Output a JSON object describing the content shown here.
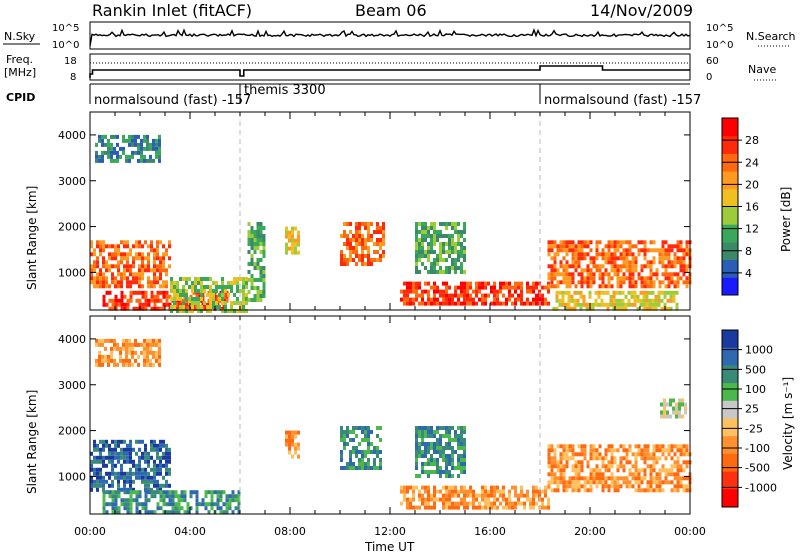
{
  "header": {
    "title": "Rankin Inlet (fitACF)",
    "beam": "Beam 06",
    "date": "14/Nov/2009"
  },
  "strip_labels": {
    "nsky": "N.Sky",
    "nsearch": "N.Search",
    "freq_line1": "Freq.",
    "freq_line2": "[MHz]",
    "nave": "Nave",
    "cpid": "CPID"
  },
  "noise_axis": {
    "left_top": "10^5",
    "left_bottom": "10^0",
    "right_top": "10^5",
    "right_bottom": "10^0"
  },
  "freq_axis": {
    "left_top": "18",
    "left_bottom": "8",
    "right_top": "60",
    "right_bottom": "0"
  },
  "cpid_segments": [
    {
      "label": "normalsound (fast) -157",
      "start_hour": 0
    },
    {
      "label": "themis 3300",
      "start_hour": 6
    },
    {
      "label": "normalsound (fast) -157",
      "start_hour": 18
    }
  ],
  "colors": {
    "power_scale": [
      "#1a1aff",
      "#2a5cb8",
      "#3a8a6a",
      "#3aa85a",
      "#9ccc3a",
      "#f0c020",
      "#ff9a20",
      "#ff6a10",
      "#ff2a0a",
      "#ff0000"
    ],
    "velocity_scale": [
      "#1a3aa0",
      "#2f6ab0",
      "#3a8a7a",
      "#4ab84a",
      "#c8c8c8",
      "#ffc060",
      "#ff9030",
      "#ff6a10",
      "#ff3010",
      "#ff0000"
    ],
    "noise_line": "#000000",
    "divider": "#999999"
  },
  "chart_data": [
    {
      "type": "heatmap",
      "name": "power",
      "ylabel": "Slant Range [km]",
      "y_ticks": [
        "1000",
        "2000",
        "3000",
        "4000"
      ],
      "ylim": [
        180,
        4500
      ],
      "colorbar_label": "Power [dB]",
      "colorbar_ticks": [
        "4",
        "8",
        "12",
        "16",
        "20",
        "24",
        "28"
      ],
      "colorbar_range": [
        0,
        32
      ],
      "regions": [
        {
          "x0": 0,
          "x1": 3.2,
          "y0": 700,
          "y1": 1700,
          "value": 26
        },
        {
          "x0": 0.5,
          "x1": 5.5,
          "y0": 200,
          "y1": 600,
          "value": 28
        },
        {
          "x0": 3.2,
          "x1": 6.2,
          "y0": 200,
          "y1": 900,
          "value": 14
        },
        {
          "x0": 6.3,
          "x1": 7.0,
          "y0": 400,
          "y1": 2100,
          "value": 10
        },
        {
          "x0": 7.8,
          "x1": 8.3,
          "y0": 1400,
          "y1": 2000,
          "value": 18
        },
        {
          "x0": 10.0,
          "x1": 11.8,
          "y0": 1200,
          "y1": 2100,
          "value": 26
        },
        {
          "x0": 12.4,
          "x1": 18.4,
          "y0": 300,
          "y1": 800,
          "value": 27
        },
        {
          "x0": 18.3,
          "x1": 24,
          "y0": 700,
          "y1": 1700,
          "value": 24
        },
        {
          "x0": 18.5,
          "x1": 23.5,
          "y0": 200,
          "y1": 600,
          "value": 18
        },
        {
          "x0": 13.0,
          "x1": 15.0,
          "y0": 1000,
          "y1": 2100,
          "value": 12
        },
        {
          "x0": 0.2,
          "x1": 2.8,
          "y0": 3400,
          "y1": 4000,
          "value": 8
        }
      ]
    },
    {
      "type": "heatmap",
      "name": "velocity",
      "ylabel": "Slant Range [km]",
      "y_ticks": [
        "1000",
        "2000",
        "3000",
        "4000"
      ],
      "ylim": [
        180,
        4500
      ],
      "xlabel": "Time UT",
      "x_ticks": [
        "00:00",
        "04:00",
        "08:00",
        "12:00",
        "16:00",
        "20:00",
        "00:00"
      ],
      "xlim": [
        0,
        24
      ],
      "colorbar_label": "Velocity [m s⁻¹]",
      "colorbar_ticks": [
        "1000",
        "500",
        "100",
        "25",
        "-25",
        "-100",
        "-500",
        "-1000"
      ],
      "regions": [
        {
          "x0": 0,
          "x1": 3.2,
          "y0": 700,
          "y1": 1800,
          "value": 400
        },
        {
          "x0": 0.5,
          "x1": 6.0,
          "y0": 200,
          "y1": 700,
          "value": 100
        },
        {
          "x0": 7.8,
          "x1": 8.3,
          "y0": 1400,
          "y1": 2000,
          "value": -300
        },
        {
          "x0": 10.0,
          "x1": 11.6,
          "y0": 1200,
          "y1": 2100,
          "value": 150
        },
        {
          "x0": 12.4,
          "x1": 18.4,
          "y0": 300,
          "y1": 800,
          "value": -200
        },
        {
          "x0": 18.3,
          "x1": 24,
          "y0": 700,
          "y1": 1700,
          "value": -300
        },
        {
          "x0": 22.8,
          "x1": 23.8,
          "y0": 2300,
          "y1": 2700,
          "value": 0
        },
        {
          "x0": 13.0,
          "x1": 15.0,
          "y0": 1000,
          "y1": 2100,
          "value": 200
        },
        {
          "x0": 0.2,
          "x1": 2.8,
          "y0": 3400,
          "y1": 4000,
          "value": -100
        }
      ]
    }
  ]
}
